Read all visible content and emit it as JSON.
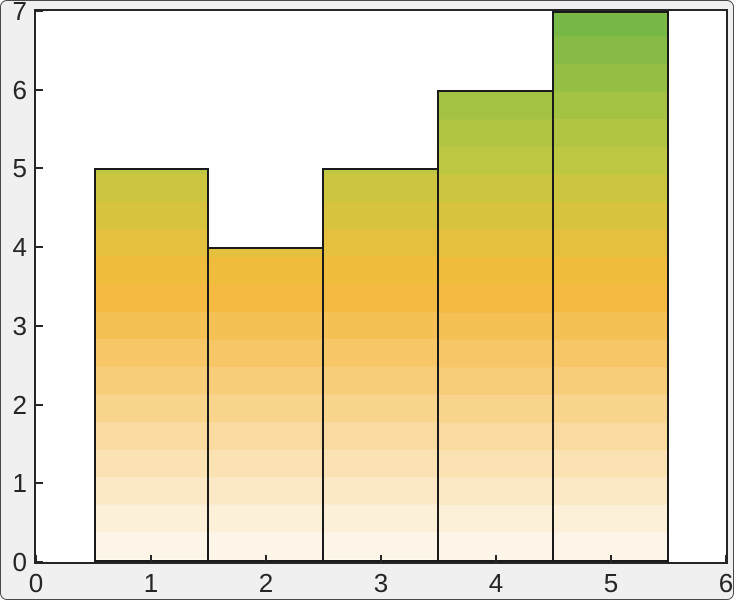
{
  "figure": {
    "background_color": "#f0f0f0",
    "plot_background_color": "#ffffff",
    "axis_color": "#262626",
    "tick_label_color": "#262626"
  },
  "chart_data": {
    "type": "bar",
    "x": [
      1,
      2,
      3,
      4,
      5
    ],
    "values": [
      5,
      4,
      5,
      6,
      7
    ],
    "bar_width": 1,
    "title": "",
    "xlabel": "",
    "ylabel": "",
    "xlim": [
      0,
      6
    ],
    "ylim": [
      0,
      7
    ],
    "x_tick_labels": [
      "0",
      "1",
      "2",
      "3",
      "4",
      "5",
      "6"
    ],
    "x_tick_values": [
      0,
      1,
      2,
      3,
      4,
      5,
      6
    ],
    "y_tick_labels": [
      "0",
      "1",
      "2",
      "3",
      "4",
      "5",
      "6",
      "7"
    ],
    "y_tick_values": [
      0,
      1,
      2,
      3,
      4,
      5,
      6,
      7
    ],
    "grid": false,
    "legend": "none",
    "bar_edge_color": "#1a1a1a",
    "bar_gradient_bands_bottom_to_top": [
      "#fdf6e8",
      "#fcf0d8",
      "#fbe9c6",
      "#fae2b3",
      "#f9dba0",
      "#f8d48d",
      "#f7cd7a",
      "#f6c667",
      "#f5c054",
      "#f4ba42",
      "#efbc3c",
      "#e4c03e",
      "#d8c33f",
      "#cbc540",
      "#bec741",
      "#b1c542",
      "#a3c243",
      "#95bf44",
      "#86bb45",
      "#77b846"
    ]
  }
}
